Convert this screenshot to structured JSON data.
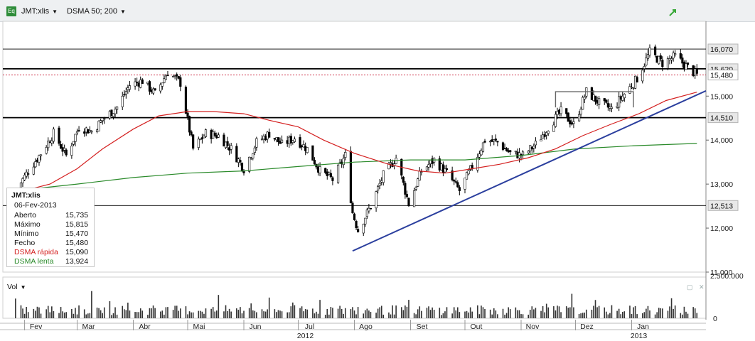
{
  "toolbar": {
    "ticker_icon": "Eq",
    "ticker": "JMT:xlis",
    "indicator": "DSMA 50; 200"
  },
  "colors": {
    "price": "#000000",
    "fast_ma": "#d42020",
    "slow_ma": "#2a8a2a",
    "trendline": "#2b3f9e",
    "volume": "#333333",
    "last_price_line": "#c8102e"
  },
  "info_box": {
    "title": "JMT:xlis",
    "date": "06-Fev-2013",
    "rows": [
      {
        "label": "Aberto",
        "value": "15,735"
      },
      {
        "label": "Máximo",
        "value": "15,815"
      },
      {
        "label": "Mínimo",
        "value": "15,470"
      },
      {
        "label": "Fecho",
        "value": "15,480"
      },
      {
        "label": "DSMA rápida",
        "value": "15,090"
      },
      {
        "label": "DSMA lenta",
        "value": "13,924"
      }
    ]
  },
  "volume_panel": {
    "label": "Vol",
    "axis_top": "2.500.000",
    "axis_zero": "0",
    "icons": [
      "restore-icon",
      "close-icon"
    ]
  },
  "chart_data": {
    "type": "candlestick",
    "ylim": [
      11000,
      16700
    ],
    "y_ticks": [
      {
        "value": 11000,
        "label": "11,000"
      },
      {
        "value": 12000,
        "label": "12,000"
      },
      {
        "value": 13000,
        "label": "13,000"
      },
      {
        "value": 14000,
        "label": "14,000"
      },
      {
        "value": 15000,
        "label": "15,000"
      }
    ],
    "horizontal_levels": [
      {
        "value": 16070,
        "label": "16,070",
        "weight": "thin"
      },
      {
        "value": 15620,
        "label": "15,620",
        "weight": "bold"
      },
      {
        "value": 14510,
        "label": "14,510",
        "weight": "bold"
      },
      {
        "value": 12513,
        "label": "12,513",
        "weight": "thin"
      }
    ],
    "last_price": {
      "value": 15480,
      "label": "15,480"
    },
    "x_months": [
      {
        "label": "Fev",
        "date": "2012-02-01"
      },
      {
        "label": "Mar",
        "date": "2012-03-01"
      },
      {
        "label": "Abr",
        "date": "2012-04-01"
      },
      {
        "label": "Mai",
        "date": "2012-05-01"
      },
      {
        "label": "Jun",
        "date": "2012-06-01"
      },
      {
        "label": "Jul",
        "date": "2012-07-01"
      },
      {
        "label": "Ago",
        "date": "2012-08-01"
      },
      {
        "label": "Set",
        "date": "2012-09-01"
      },
      {
        "label": "Out",
        "date": "2012-10-01"
      },
      {
        "label": "Nov",
        "date": "2012-11-01"
      },
      {
        "label": "Dez",
        "date": "2012-12-01"
      },
      {
        "label": "Jan",
        "date": "2013-01-01"
      }
    ],
    "x_years": [
      {
        "label": "2012",
        "date": "2012-07-01"
      },
      {
        "label": "2013",
        "date": "2013-01-01"
      }
    ],
    "x_range": [
      "2012-01-20",
      "2013-02-11"
    ],
    "close_path": [
      [
        "2012-01-27",
        12850
      ],
      [
        "2012-02-03",
        13300
      ],
      [
        "2012-02-10",
        13700
      ],
      [
        "2012-02-17",
        14150
      ],
      [
        "2012-02-24",
        13650
      ],
      [
        "2012-03-02",
        14300
      ],
      [
        "2012-03-09",
        14200
      ],
      [
        "2012-03-16",
        14500
      ],
      [
        "2012-03-23",
        14750
      ],
      [
        "2012-03-30",
        15250
      ],
      [
        "2012-04-06",
        15350
      ],
      [
        "2012-04-13",
        15050
      ],
      [
        "2012-04-20",
        15550
      ],
      [
        "2012-04-27",
        15300
      ],
      [
        "2012-05-04",
        13800
      ],
      [
        "2012-05-11",
        14150
      ],
      [
        "2012-05-18",
        14100
      ],
      [
        "2012-05-25",
        13800
      ],
      [
        "2012-06-01",
        13350
      ],
      [
        "2012-06-08",
        13950
      ],
      [
        "2012-06-15",
        14150
      ],
      [
        "2012-06-22",
        13900
      ],
      [
        "2012-06-29",
        14050
      ],
      [
        "2012-07-06",
        13800
      ],
      [
        "2012-07-13",
        13300
      ],
      [
        "2012-07-20",
        13100
      ],
      [
        "2012-07-27",
        13650
      ],
      [
        "2012-07-31",
        12350
      ],
      [
        "2012-08-03",
        11950
      ],
      [
        "2012-08-10",
        12500
      ],
      [
        "2012-08-17",
        13200
      ],
      [
        "2012-08-24",
        13600
      ],
      [
        "2012-08-31",
        12550
      ],
      [
        "2012-09-07",
        13300
      ],
      [
        "2012-09-14",
        13550
      ],
      [
        "2012-09-21",
        13250
      ],
      [
        "2012-09-28",
        12850
      ],
      [
        "2012-10-05",
        13400
      ],
      [
        "2012-10-12",
        14000
      ],
      [
        "2012-10-19",
        13950
      ],
      [
        "2012-10-26",
        13700
      ],
      [
        "2012-11-02",
        13650
      ],
      [
        "2012-11-09",
        13900
      ],
      [
        "2012-11-16",
        14300
      ],
      [
        "2012-11-23",
        14650
      ],
      [
        "2012-11-30",
        14350
      ],
      [
        "2012-12-07",
        15100
      ],
      [
        "2012-12-14",
        14850
      ],
      [
        "2012-12-21",
        14700
      ],
      [
        "2013-01-04",
        15400
      ],
      [
        "2013-01-11",
        16000
      ],
      [
        "2013-01-18",
        15750
      ],
      [
        "2013-01-25",
        15900
      ],
      [
        "2013-02-01",
        15650
      ],
      [
        "2013-02-06",
        15480
      ]
    ],
    "fast_ma_path": [
      [
        "2012-01-27",
        12800
      ],
      [
        "2012-02-15",
        13000
      ],
      [
        "2012-03-01",
        13350
      ],
      [
        "2012-03-15",
        13800
      ],
      [
        "2012-04-01",
        14250
      ],
      [
        "2012-04-15",
        14550
      ],
      [
        "2012-05-01",
        14650
      ],
      [
        "2012-05-15",
        14650
      ],
      [
        "2012-06-01",
        14600
      ],
      [
        "2012-06-15",
        14450
      ],
      [
        "2012-07-01",
        14300
      ],
      [
        "2012-07-15",
        14000
      ],
      [
        "2012-08-01",
        13700
      ],
      [
        "2012-08-20",
        13450
      ],
      [
        "2012-09-05",
        13300
      ],
      [
        "2012-09-20",
        13250
      ],
      [
        "2012-10-05",
        13350
      ],
      [
        "2012-10-20",
        13450
      ],
      [
        "2012-11-05",
        13600
      ],
      [
        "2012-11-20",
        13800
      ],
      [
        "2012-12-05",
        14100
      ],
      [
        "2012-12-20",
        14350
      ],
      [
        "2013-01-05",
        14600
      ],
      [
        "2013-01-20",
        14900
      ],
      [
        "2013-02-06",
        15090
      ]
    ],
    "slow_ma_path": [
      [
        "2012-01-27",
        12850
      ],
      [
        "2012-03-01",
        13000
      ],
      [
        "2012-04-01",
        13150
      ],
      [
        "2012-05-01",
        13250
      ],
      [
        "2012-06-01",
        13300
      ],
      [
        "2012-07-01",
        13400
      ],
      [
        "2012-08-01",
        13500
      ],
      [
        "2012-09-01",
        13550
      ],
      [
        "2012-10-01",
        13550
      ],
      [
        "2012-11-01",
        13650
      ],
      [
        "2012-12-01",
        13800
      ],
      [
        "2013-01-01",
        13870
      ],
      [
        "2013-02-06",
        13924
      ]
    ],
    "trendline": [
      [
        "2012-07-31",
        11480
      ],
      [
        "2013-02-11",
        15120
      ]
    ],
    "box_top": [
      [
        "2012-11-20",
        15100
      ],
      [
        "2013-01-02",
        15100
      ]
    ],
    "volume": {
      "ylim": [
        0,
        2500000
      ]
    }
  }
}
